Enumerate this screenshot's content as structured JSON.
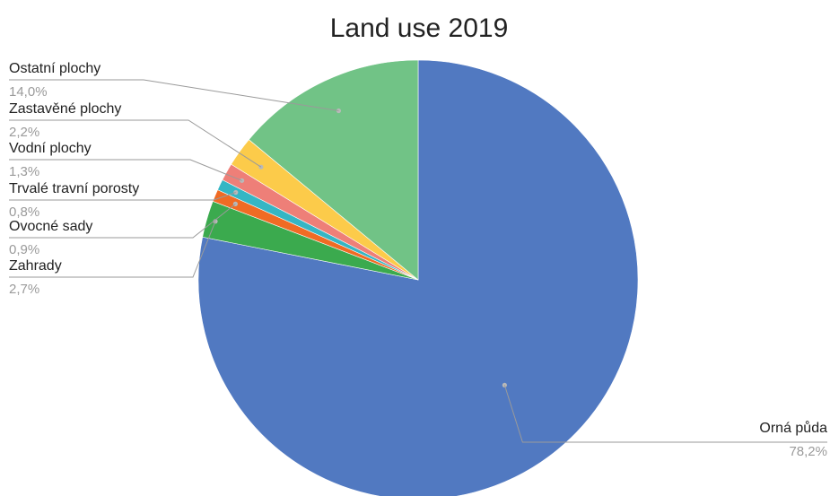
{
  "chart_data": {
    "type": "pie",
    "title": "Land use 2019",
    "slices": [
      {
        "label": "Orná půda",
        "value": 78.2,
        "display": "78,2%",
        "color": "#5179C1"
      },
      {
        "label": "Zahrady",
        "value": 2.7,
        "display": "2,7%",
        "color": "#3BAA4E"
      },
      {
        "label": "Ovocné sady",
        "value": 0.9,
        "display": "0,9%",
        "color": "#F06B24"
      },
      {
        "label": "Trvalé travní porosty",
        "value": 0.8,
        "display": "0,8%",
        "color": "#35B6C4"
      },
      {
        "label": "Vodní plochy",
        "value": 1.3,
        "display": "1,3%",
        "color": "#EE7F78"
      },
      {
        "label": "Zastavěné plochy",
        "value": 2.2,
        "display": "2,2%",
        "color": "#FCCB4A"
      },
      {
        "label": "Ostatní plochy",
        "value": 14.0,
        "display": "14,0%",
        "color": "#71C386"
      }
    ],
    "start_angle": "12 o'clock",
    "direction": "clockwise",
    "legend": "none (callout labels)"
  }
}
